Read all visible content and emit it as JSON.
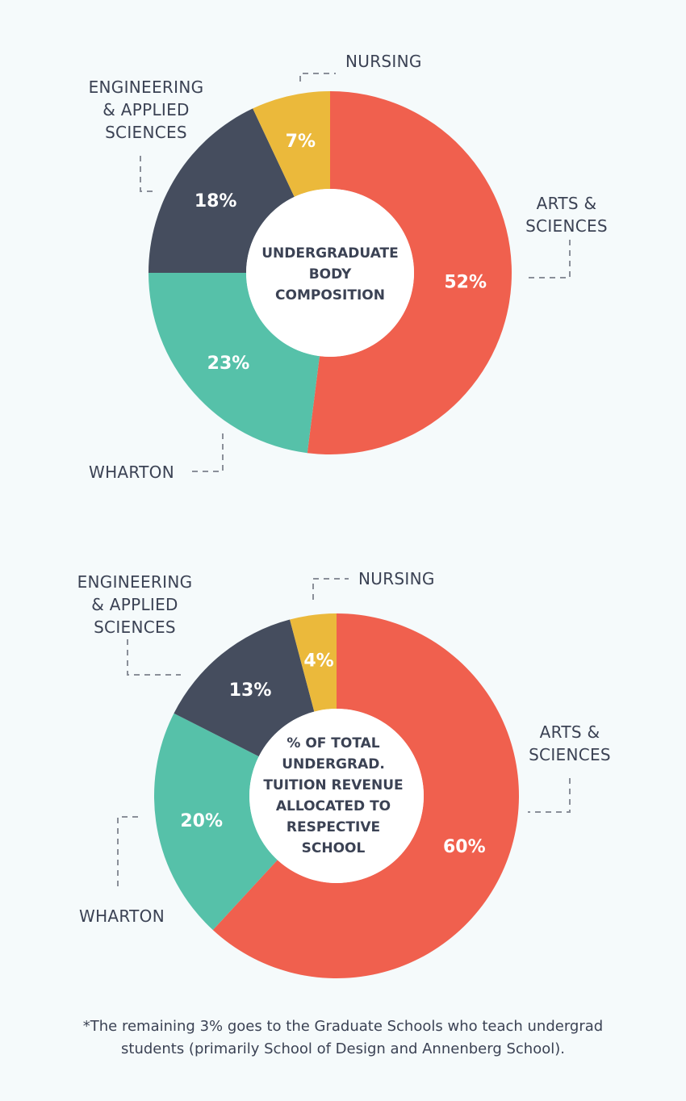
{
  "colors": {
    "arts_sciences": "#f0604e",
    "wharton": "#56c1a9",
    "engineering": "#454d5e",
    "nursing": "#ebb93b",
    "text": "#3b4254",
    "background": "#f5fafb"
  },
  "chart_data": [
    {
      "type": "pie",
      "variant": "donut",
      "center_title": "UNDERGRADUATE\nBODY\nCOMPOSITION",
      "slices": [
        {
          "label": "ARTS &\nSCIENCES",
          "value": 52,
          "value_label": "52%",
          "color": "#f0604e"
        },
        {
          "label": "WHARTON",
          "value": 23,
          "value_label": "23%",
          "color": "#56c1a9"
        },
        {
          "label": "ENGINEERING\n& APPLIED\nSCIENCES",
          "value": 18,
          "value_label": "18%",
          "color": "#454d5e"
        },
        {
          "label": "NURSING",
          "value": 7,
          "value_label": "7%",
          "color": "#ebb93b"
        }
      ]
    },
    {
      "type": "pie",
      "variant": "donut",
      "center_title": "% OF TOTAL\nUNDERGRAD.\nTUITION REVENUE\nALLOCATED TO\nRESPECTIVE\nSCHOOL",
      "slices": [
        {
          "label": "ARTS &\nSCIENCES",
          "value": 60,
          "value_label": "60%",
          "color": "#f0604e"
        },
        {
          "label": "WHARTON",
          "value": 20,
          "value_label": "20%",
          "color": "#56c1a9"
        },
        {
          "label": "ENGINEERING\n& APPLIED\nSCIENCES",
          "value": 13,
          "value_label": "13%",
          "color": "#454d5e"
        },
        {
          "label": "NURSING",
          "value": 4,
          "value_label": "4%",
          "color": "#ebb93b"
        }
      ]
    }
  ],
  "footnote": "*The remaining 3% goes to the Graduate Schools who teach undergrad\nstudents (primarily School of Design and Annenberg School)."
}
